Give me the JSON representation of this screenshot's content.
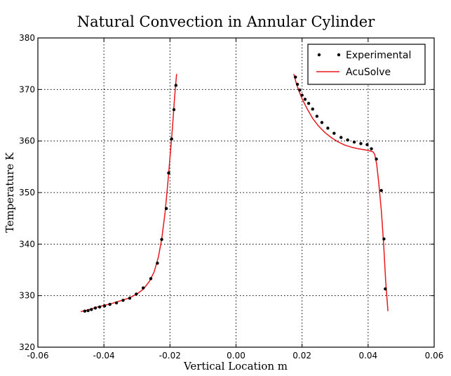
{
  "chart_data": {
    "type": "line",
    "title": "Natural Convection in Annular Cylinder",
    "xlabel": "Vertical Location m",
    "ylabel": "Temperature K",
    "xlim": [
      -0.06,
      0.06
    ],
    "ylim": [
      320,
      380
    ],
    "xticks": [
      -0.06,
      -0.04,
      -0.02,
      0.0,
      0.02,
      0.04,
      0.06
    ],
    "xtick_labels": [
      "-0.06",
      "-0.04",
      "-0.02",
      "0.00",
      "0.02",
      "0.04",
      "0.06"
    ],
    "yticks": [
      320,
      330,
      340,
      350,
      360,
      370,
      380
    ],
    "ytick_labels": [
      "320",
      "330",
      "340",
      "350",
      "360",
      "370",
      "380"
    ],
    "grid": true,
    "legend_position": "top-right",
    "series": [
      {
        "name": "Experimental",
        "style": "markers",
        "color": "#000000",
        "segments": [
          [
            [
              -0.0458,
              327.0
            ],
            [
              -0.0448,
              327.1
            ],
            [
              -0.0438,
              327.3
            ],
            [
              -0.0426,
              327.6
            ],
            [
              -0.0413,
              327.8
            ],
            [
              -0.0398,
              328.0
            ],
            [
              -0.0382,
              328.3
            ],
            [
              -0.0362,
              328.6
            ],
            [
              -0.0342,
              329.1
            ],
            [
              -0.0322,
              329.5
            ],
            [
              -0.0302,
              330.3
            ],
            [
              -0.0281,
              331.5
            ],
            [
              -0.0258,
              333.3
            ],
            [
              -0.0238,
              336.3
            ],
            [
              -0.0225,
              340.9
            ],
            [
              -0.0211,
              346.9
            ],
            [
              -0.0204,
              353.8
            ],
            [
              -0.0195,
              360.4
            ],
            [
              -0.0188,
              366.1
            ],
            [
              -0.0182,
              370.8
            ]
          ],
          [
            [
              0.018,
              372.4
            ],
            [
              0.0186,
              371.0
            ],
            [
              0.0193,
              369.9
            ],
            [
              0.02,
              368.9
            ],
            [
              0.0209,
              368.1
            ],
            [
              0.022,
              367.3
            ],
            [
              0.0232,
              366.2
            ],
            [
              0.0245,
              364.8
            ],
            [
              0.026,
              363.6
            ],
            [
              0.0278,
              362.5
            ],
            [
              0.0297,
              361.5
            ],
            [
              0.0318,
              360.7
            ],
            [
              0.0338,
              360.2
            ],
            [
              0.0358,
              359.8
            ],
            [
              0.0378,
              359.5
            ],
            [
              0.0397,
              359.3
            ],
            [
              0.041,
              358.5
            ],
            [
              0.0425,
              356.5
            ],
            [
              0.044,
              350.4
            ],
            [
              0.0448,
              341.0
            ],
            [
              0.0452,
              331.3
            ]
          ]
        ]
      },
      {
        "name": "AcuSolve",
        "style": "line",
        "color": "#e8191d",
        "segments": [
          [
            [
              -0.047,
              326.9
            ],
            [
              -0.045,
              327.2
            ],
            [
              -0.0425,
              327.7
            ],
            [
              -0.04,
              328.1
            ],
            [
              -0.0375,
              328.5
            ],
            [
              -0.035,
              329.0
            ],
            [
              -0.0325,
              329.5
            ],
            [
              -0.03,
              330.3
            ],
            [
              -0.028,
              331.3
            ],
            [
              -0.0262,
              332.8
            ],
            [
              -0.0248,
              334.6
            ],
            [
              -0.0235,
              337.5
            ],
            [
              -0.0225,
              341.0
            ],
            [
              -0.0215,
              346.0
            ],
            [
              -0.0207,
              351.5
            ],
            [
              -0.0199,
              357.5
            ],
            [
              -0.0192,
              363.0
            ],
            [
              -0.0186,
              368.5
            ],
            [
              -0.018,
              373.0
            ]
          ],
          [
            [
              0.0175,
              373.0
            ],
            [
              0.0182,
              371.3
            ],
            [
              0.019,
              369.8
            ],
            [
              0.02,
              368.2
            ],
            [
              0.0215,
              366.3
            ],
            [
              0.0232,
              364.4
            ],
            [
              0.025,
              362.9
            ],
            [
              0.027,
              361.6
            ],
            [
              0.029,
              360.6
            ],
            [
              0.031,
              359.8
            ],
            [
              0.033,
              359.2
            ],
            [
              0.035,
              358.8
            ],
            [
              0.037,
              358.5
            ],
            [
              0.039,
              358.3
            ],
            [
              0.0405,
              358.1
            ],
            [
              0.0415,
              357.9
            ],
            [
              0.042,
              357.4
            ],
            [
              0.0426,
              355.5
            ],
            [
              0.0432,
              352.0
            ],
            [
              0.044,
              346.5
            ],
            [
              0.0447,
              340.0
            ],
            [
              0.0453,
              333.0
            ],
            [
              0.046,
              327.0
            ]
          ]
        ]
      }
    ]
  }
}
